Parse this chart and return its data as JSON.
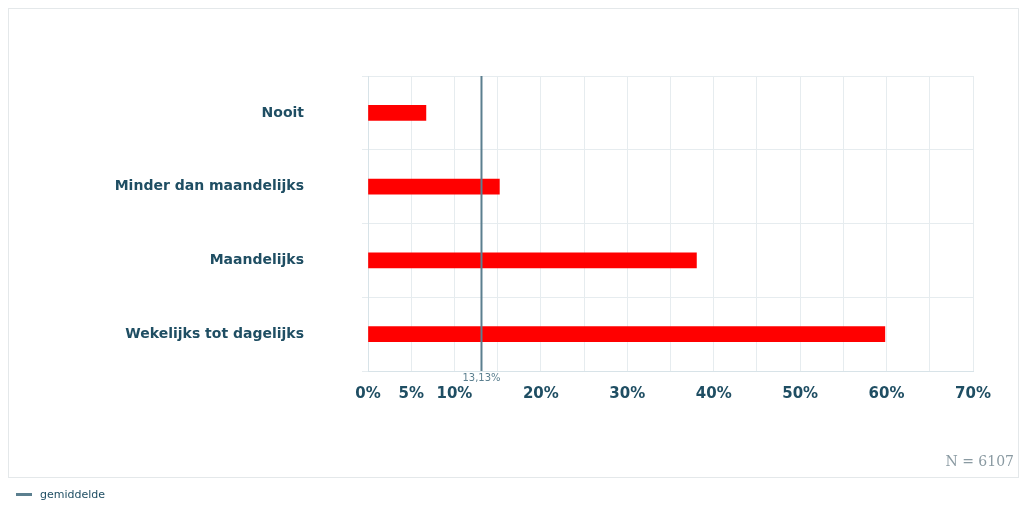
{
  "chart_data": {
    "type": "bar",
    "orientation": "horizontal",
    "categories": [
      "Nooit",
      "Minder dan maandelijks",
      "Maandelijks",
      "Wekelijks tot dagelijks"
    ],
    "values": [
      6.7,
      15.2,
      38,
      59.8
    ],
    "color": "#ff0000",
    "xlim": [
      0,
      70
    ],
    "xticks": [
      {
        "value": 0,
        "label": "0%"
      },
      {
        "value": 5,
        "label": "5%"
      },
      {
        "value": 10,
        "label": "10%"
      },
      {
        "value": 15,
        "label": null
      },
      {
        "value": 20,
        "label": "20%"
      },
      {
        "value": 25,
        "label": null
      },
      {
        "value": 30,
        "label": "30%"
      },
      {
        "value": 35,
        "label": null
      },
      {
        "value": 40,
        "label": "40%"
      },
      {
        "value": 45,
        "label": null
      },
      {
        "value": 50,
        "label": "50%"
      },
      {
        "value": 55,
        "label": null
      },
      {
        "value": 60,
        "label": "60%"
      },
      {
        "value": 65,
        "label": null
      },
      {
        "value": 70,
        "label": "70%"
      }
    ],
    "ref_lines": [
      {
        "axis": "x",
        "value": 13.13,
        "label": "13,13%",
        "color": "#5b7f8f"
      }
    ],
    "annotations": [
      "N = 6107",
      "gemiddelde"
    ],
    "grid": true,
    "legend": false
  }
}
